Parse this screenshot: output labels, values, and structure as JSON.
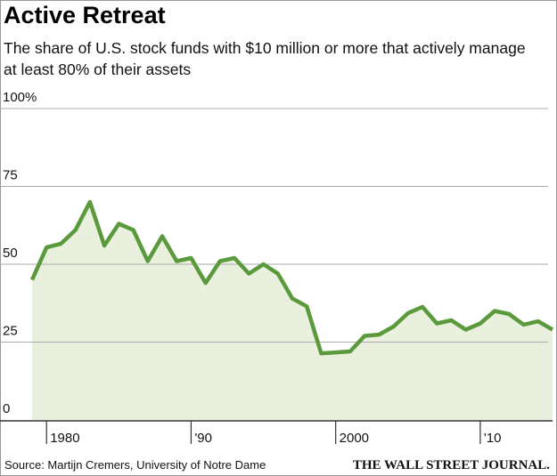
{
  "chart_data": {
    "type": "area-line",
    "title": "Active Retreat",
    "subtitle": "The share of U.S. stock funds with $10 million or more that actively manage at least 80% of their assets",
    "source": "Source: Martijn Cremers, University of Notre Dame",
    "publisher": "THE WALL STREET JOURNAL.",
    "x": [
      1979,
      1980,
      1981,
      1982,
      1983,
      1984,
      1985,
      1986,
      1987,
      1988,
      1989,
      1990,
      1991,
      1992,
      1993,
      1994,
      1995,
      1996,
      1997,
      1998,
      1999,
      2000,
      2001,
      2002,
      2003,
      2004,
      2005,
      2006,
      2007,
      2008,
      2009,
      2010,
      2011,
      2012,
      2013,
      2014,
      2015
    ],
    "values": [
      45,
      55.4,
      56.6,
      61,
      70,
      56,
      63,
      61,
      51,
      59,
      51,
      52,
      44,
      51,
      52,
      47,
      50,
      47,
      39,
      36.5,
      21.4,
      21.7,
      22,
      27,
      27.4,
      30,
      34.3,
      36.3,
      31,
      32,
      29,
      31,
      35,
      34,
      30.6,
      31.7,
      29
    ],
    "color": "#5b9a3c",
    "fill_color": "#e9f0dd",
    "xlim": [
      1979,
      2015
    ],
    "ylim": [
      0,
      100
    ],
    "xticks": [
      1980,
      {
        "value": 1990,
        "label": "'90"
      },
      2000,
      {
        "value": 2010,
        "label": "'10"
      }
    ],
    "yticks": [
      0,
      25,
      50,
      75,
      {
        "value": 100,
        "label": "100%"
      }
    ],
    "grid": true
  }
}
